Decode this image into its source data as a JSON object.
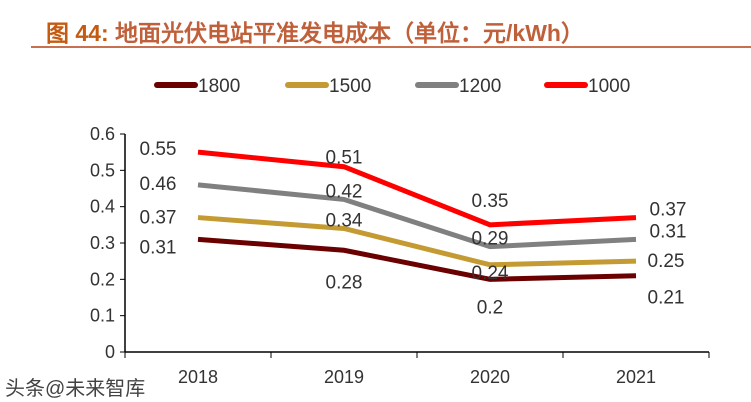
{
  "chart_data": {
    "type": "line",
    "title_prefix": "图 44:",
    "title": "地面光伏电站平准发电成本（单位：元/kWh）",
    "categories": [
      "2018",
      "2019",
      "2020",
      "2021"
    ],
    "ylim": [
      0,
      0.6
    ],
    "yticks": [
      "0",
      "0.1",
      "0.2",
      "0.3",
      "0.4",
      "0.5",
      "0.6"
    ],
    "grid": false,
    "legend": "top",
    "series": [
      {
        "name": "1800",
        "color": "#6b0000",
        "values": [
          0.31,
          0.28,
          0.2,
          0.21
        ],
        "labels": [
          "0.31",
          "0.28",
          "0.2",
          "0.21"
        ]
      },
      {
        "name": "1500",
        "color": "#c49a32",
        "values": [
          0.37,
          0.34,
          0.24,
          0.25
        ],
        "labels": [
          "0.37",
          "0.34",
          "0.24",
          "0.25"
        ]
      },
      {
        "name": "1200",
        "color": "#808080",
        "values": [
          0.46,
          0.42,
          0.29,
          0.31
        ],
        "labels": [
          "0.46",
          "0.42",
          "0.29",
          "0.31"
        ]
      },
      {
        "name": "1000",
        "color": "#ff0000",
        "values": [
          0.55,
          0.51,
          0.35,
          0.37
        ],
        "labels": [
          "0.55",
          "0.51",
          "0.35",
          "0.37"
        ]
      }
    ]
  },
  "watermark": "头条@未来智库"
}
